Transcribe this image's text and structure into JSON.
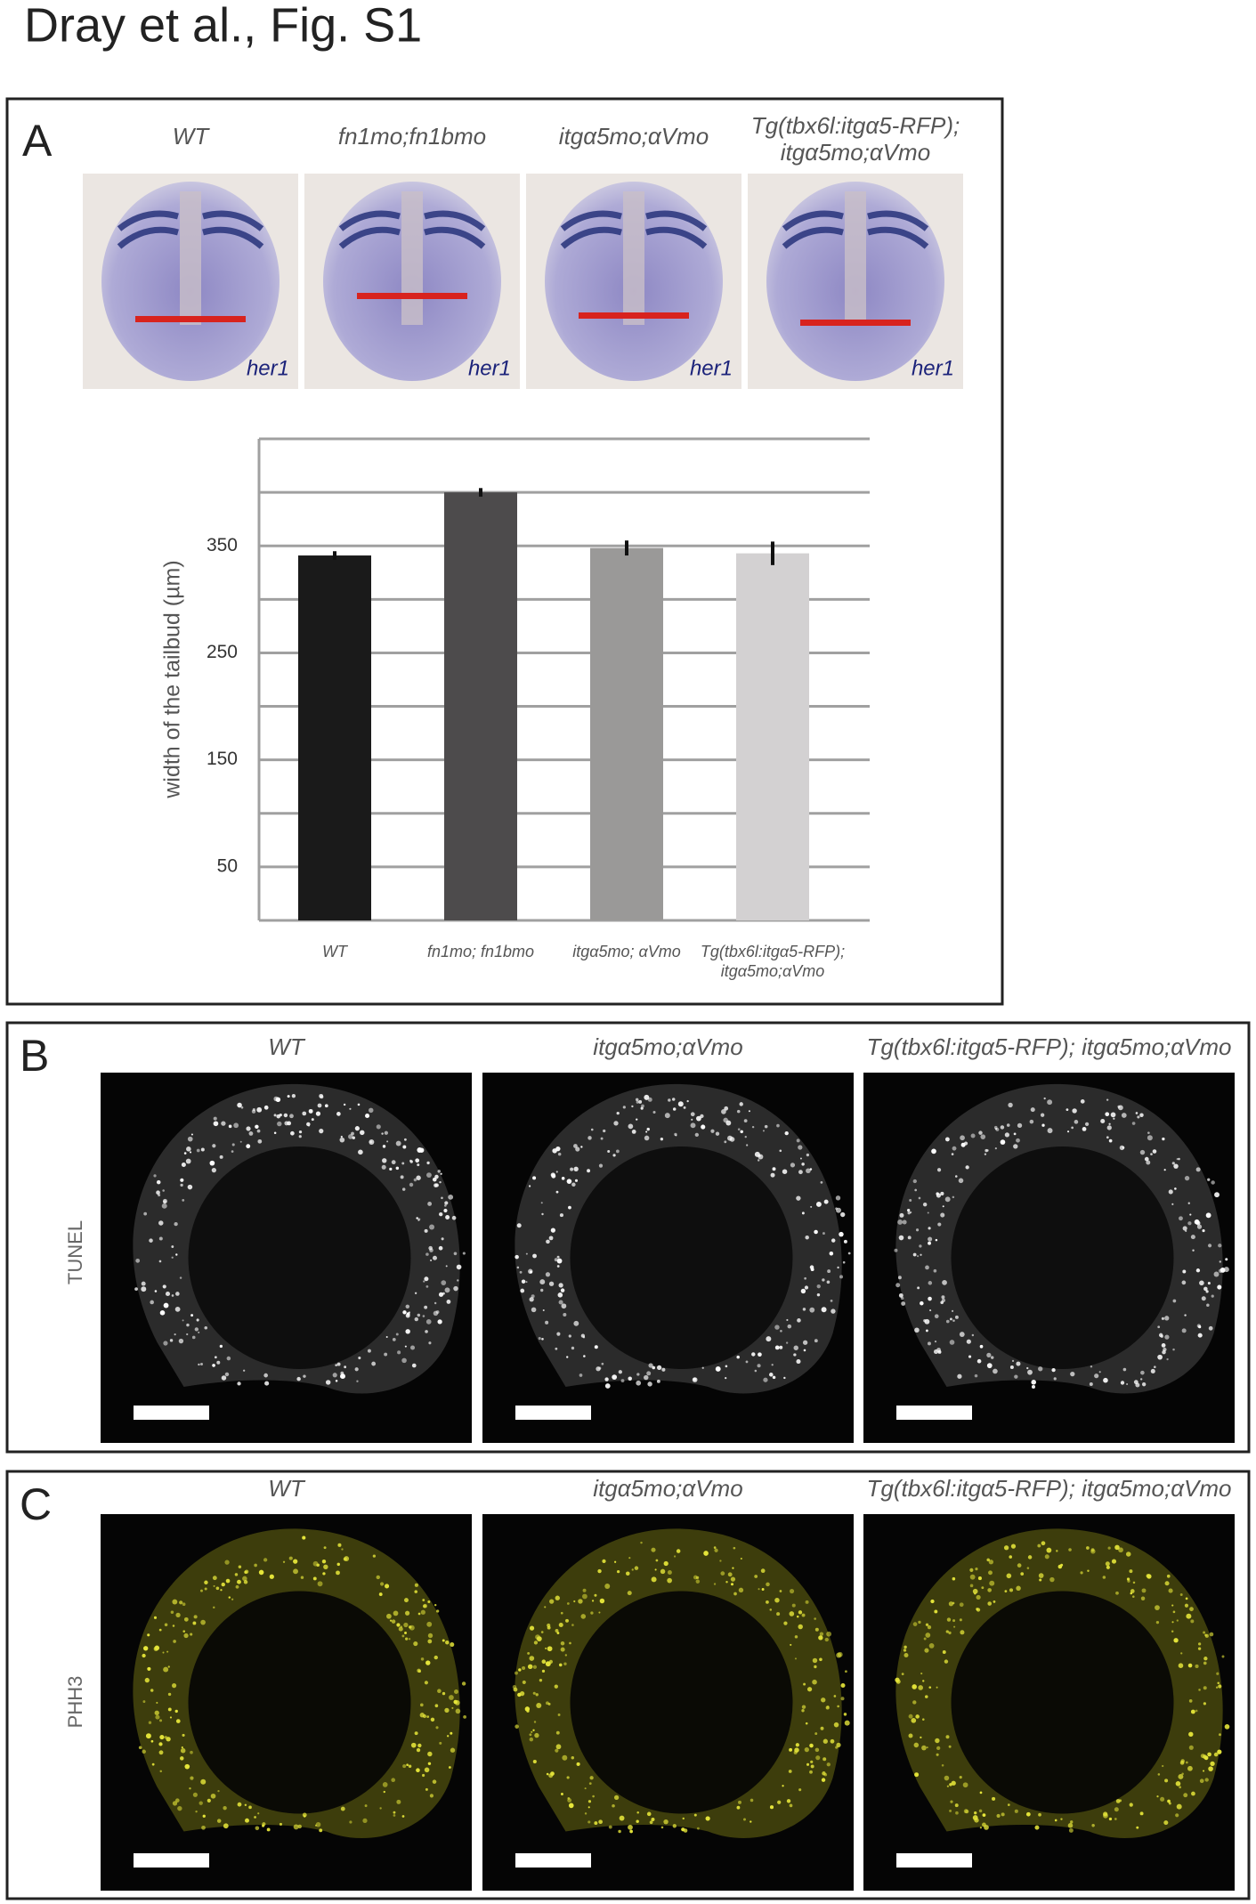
{
  "title": "Dray et al., Fig. S1",
  "panel_a": {
    "label": "A",
    "columns": [
      "WT",
      "fn1mo;fn1bmo",
      "itgα5mo;αVmo",
      "Tg(tbx6l:itgα5-RFP); itgα5mo;αVmo"
    ],
    "stain": "her1"
  },
  "chart_data": {
    "type": "bar",
    "y_label": "width of the tailbud (µm)",
    "categories": [
      "WT",
      "fn1mo; fn1bmo",
      "itgα5mo; αVmo",
      "Tg(tbx6l:itgα5-RFP); itgα5mo;αVmo"
    ],
    "values": [
      341,
      400,
      348,
      343
    ],
    "errors": [
      4,
      4,
      7,
      11
    ],
    "colors": [
      "#1a1a1a",
      "#4d4b4c",
      "#9a9998",
      "#d3d1d2"
    ],
    "ylim": [
      0,
      450
    ],
    "yticks": [
      50,
      150,
      250,
      350
    ],
    "ygrid": [
      0,
      50,
      100,
      150,
      200,
      250,
      300,
      350,
      400,
      450
    ],
    "grid": true
  },
  "panel_b": {
    "label": "B",
    "columns": [
      "WT",
      "itgα5mo;αVmo",
      "Tg(tbx6l:itgα5-RFP); itgα5mo;αVmo"
    ],
    "stain": "TUNEL"
  },
  "panel_c": {
    "label": "C",
    "columns": [
      "WT",
      "itgα5mo;αVmo",
      "Tg(tbx6l:itgα5-RFP); itgα5mo;αVmo"
    ],
    "stain": "PHH3"
  }
}
